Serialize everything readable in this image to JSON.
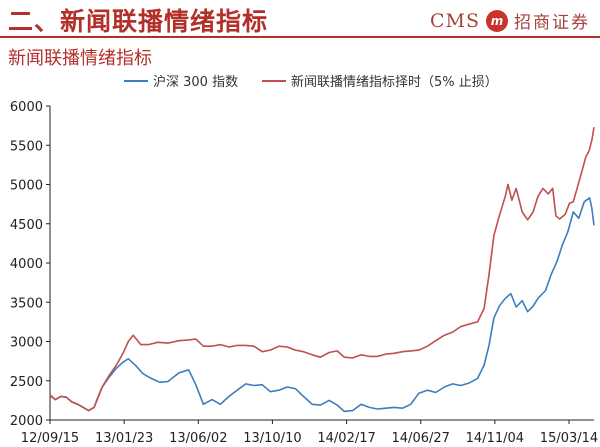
{
  "header": {
    "title": "二、新闻联播情绪指标",
    "brand_en": "CMS",
    "brand_mark": "m",
    "brand_cn": "招商证券"
  },
  "colors": {
    "accent": "#b3302a",
    "series_hs300": "#3d7dbf",
    "series_strategy": "#c0504d"
  },
  "chart_data": {
    "type": "line",
    "title": "新闻联播情绪指标",
    "xlabel": "",
    "ylabel": "",
    "ylim": [
      2000,
      6000
    ],
    "yticks": [
      2000,
      2500,
      3000,
      3500,
      4000,
      4500,
      5000,
      5500,
      6000
    ],
    "xticks": [
      "12/09/15",
      "13/01/23",
      "13/06/02",
      "13/10/10",
      "14/02/17",
      "14/06/27",
      "14/11/04",
      "15/03/14"
    ],
    "xrange": [
      "2012-09-15",
      "2015-06-12"
    ],
    "grid": false,
    "legend": "top",
    "series": [
      {
        "name": "沪深 300 指数",
        "color": "#3d7dbf",
        "points": [
          [
            "2012-09-15",
            2310
          ],
          [
            "2012-09-25",
            2260
          ],
          [
            "2012-10-05",
            2300
          ],
          [
            "2012-10-15",
            2290
          ],
          [
            "2012-10-25",
            2230
          ],
          [
            "2012-11-05",
            2200
          ],
          [
            "2012-11-15",
            2160
          ],
          [
            "2012-11-25",
            2120
          ],
          [
            "2012-12-05",
            2160
          ],
          [
            "2012-12-12",
            2290
          ],
          [
            "2012-12-20",
            2420
          ],
          [
            "2013-01-01",
            2540
          ],
          [
            "2013-01-15",
            2660
          ],
          [
            "2013-01-28",
            2740
          ],
          [
            "2013-02-06",
            2780
          ],
          [
            "2013-02-20",
            2690
          ],
          [
            "2013-03-05",
            2590
          ],
          [
            "2013-03-20",
            2530
          ],
          [
            "2013-04-05",
            2480
          ],
          [
            "2013-04-20",
            2490
          ],
          [
            "2013-05-10",
            2600
          ],
          [
            "2013-05-28",
            2640
          ],
          [
            "2013-06-10",
            2450
          ],
          [
            "2013-06-24",
            2200
          ],
          [
            "2013-07-10",
            2260
          ],
          [
            "2013-07-25",
            2200
          ],
          [
            "2013-08-10",
            2300
          ],
          [
            "2013-08-25",
            2380
          ],
          [
            "2013-09-10",
            2460
          ],
          [
            "2013-09-25",
            2440
          ],
          [
            "2013-10-10",
            2450
          ],
          [
            "2013-10-25",
            2360
          ],
          [
            "2013-11-10",
            2380
          ],
          [
            "2013-11-25",
            2420
          ],
          [
            "2013-12-10",
            2400
          ],
          [
            "2013-12-25",
            2300
          ],
          [
            "2014-01-10",
            2200
          ],
          [
            "2014-01-25",
            2190
          ],
          [
            "2014-02-10",
            2250
          ],
          [
            "2014-02-25",
            2190
          ],
          [
            "2014-03-10",
            2110
          ],
          [
            "2014-03-25",
            2120
          ],
          [
            "2014-04-10",
            2200
          ],
          [
            "2014-04-25",
            2160
          ],
          [
            "2014-05-10",
            2140
          ],
          [
            "2014-05-25",
            2150
          ],
          [
            "2014-06-10",
            2160
          ],
          [
            "2014-06-25",
            2150
          ],
          [
            "2014-07-10",
            2200
          ],
          [
            "2014-07-25",
            2340
          ],
          [
            "2014-08-10",
            2380
          ],
          [
            "2014-08-25",
            2350
          ],
          [
            "2014-09-10",
            2420
          ],
          [
            "2014-09-25",
            2460
          ],
          [
            "2014-10-10",
            2440
          ],
          [
            "2014-10-25",
            2470
          ],
          [
            "2014-11-10",
            2530
          ],
          [
            "2014-11-22",
            2700
          ],
          [
            "2014-12-01",
            2950
          ],
          [
            "2014-12-10",
            3300
          ],
          [
            "2014-12-20",
            3450
          ],
          [
            "2014-12-31",
            3550
          ],
          [
            "2015-01-10",
            3610
          ],
          [
            "2015-01-20",
            3440
          ],
          [
            "2015-01-31",
            3520
          ],
          [
            "2015-02-10",
            3380
          ],
          [
            "2015-02-20",
            3450
          ],
          [
            "2015-03-01",
            3550
          ],
          [
            "2015-03-15",
            3650
          ],
          [
            "2015-03-25",
            3850
          ],
          [
            "2015-04-05",
            4020
          ],
          [
            "2015-04-15",
            4230
          ],
          [
            "2015-04-25",
            4400
          ],
          [
            "2015-05-05",
            4650
          ],
          [
            "2015-05-15",
            4570
          ],
          [
            "2015-05-25",
            4780
          ],
          [
            "2015-06-04",
            4830
          ],
          [
            "2015-06-08",
            4700
          ],
          [
            "2015-06-12",
            4480
          ]
        ]
      },
      {
        "name": "新闻联播情绪指标择时（5% 止损）",
        "color": "#c0504d",
        "points": [
          [
            "2012-09-15",
            2320
          ],
          [
            "2012-09-25",
            2260
          ],
          [
            "2012-10-05",
            2300
          ],
          [
            "2012-10-15",
            2290
          ],
          [
            "2012-10-25",
            2230
          ],
          [
            "2012-11-05",
            2200
          ],
          [
            "2012-11-15",
            2160
          ],
          [
            "2012-11-25",
            2120
          ],
          [
            "2012-12-05",
            2160
          ],
          [
            "2012-12-12",
            2280
          ],
          [
            "2012-12-20",
            2420
          ],
          [
            "2013-01-01",
            2560
          ],
          [
            "2013-01-15",
            2700
          ],
          [
            "2013-01-28",
            2860
          ],
          [
            "2013-02-06",
            3000
          ],
          [
            "2013-02-15",
            3080
          ],
          [
            "2013-03-01",
            2960
          ],
          [
            "2013-03-15",
            2960
          ],
          [
            "2013-04-01",
            2990
          ],
          [
            "2013-04-20",
            2980
          ],
          [
            "2013-05-10",
            3010
          ],
          [
            "2013-05-28",
            3020
          ],
          [
            "2013-06-10",
            3030
          ],
          [
            "2013-06-24",
            2940
          ],
          [
            "2013-07-10",
            2940
          ],
          [
            "2013-07-25",
            2960
          ],
          [
            "2013-08-10",
            2930
          ],
          [
            "2013-08-25",
            2950
          ],
          [
            "2013-09-10",
            2950
          ],
          [
            "2013-09-25",
            2940
          ],
          [
            "2013-10-10",
            2870
          ],
          [
            "2013-10-25",
            2890
          ],
          [
            "2013-11-10",
            2940
          ],
          [
            "2013-11-25",
            2930
          ],
          [
            "2013-12-10",
            2890
          ],
          [
            "2013-12-25",
            2870
          ],
          [
            "2014-01-10",
            2830
          ],
          [
            "2014-01-25",
            2800
          ],
          [
            "2014-02-10",
            2860
          ],
          [
            "2014-02-25",
            2880
          ],
          [
            "2014-03-10",
            2800
          ],
          [
            "2014-03-25",
            2790
          ],
          [
            "2014-04-10",
            2830
          ],
          [
            "2014-04-25",
            2810
          ],
          [
            "2014-05-10",
            2810
          ],
          [
            "2014-05-25",
            2840
          ],
          [
            "2014-06-10",
            2850
          ],
          [
            "2014-06-25",
            2870
          ],
          [
            "2014-07-10",
            2880
          ],
          [
            "2014-07-25",
            2890
          ],
          [
            "2014-08-10",
            2940
          ],
          [
            "2014-08-25",
            3010
          ],
          [
            "2014-09-10",
            3080
          ],
          [
            "2014-09-25",
            3120
          ],
          [
            "2014-10-10",
            3190
          ],
          [
            "2014-10-25",
            3220
          ],
          [
            "2014-11-10",
            3250
          ],
          [
            "2014-11-22",
            3420
          ],
          [
            "2014-12-01",
            3850
          ],
          [
            "2014-12-10",
            4350
          ],
          [
            "2014-12-20",
            4600
          ],
          [
            "2014-12-31",
            4850
          ],
          [
            "2015-01-05",
            5000
          ],
          [
            "2015-01-12",
            4800
          ],
          [
            "2015-01-20",
            4950
          ],
          [
            "2015-01-31",
            4650
          ],
          [
            "2015-02-10",
            4550
          ],
          [
            "2015-02-20",
            4650
          ],
          [
            "2015-03-01",
            4850
          ],
          [
            "2015-03-10",
            4950
          ],
          [
            "2015-03-20",
            4880
          ],
          [
            "2015-03-28",
            4950
          ],
          [
            "2015-04-03",
            4600
          ],
          [
            "2015-04-10",
            4560
          ],
          [
            "2015-04-20",
            4620
          ],
          [
            "2015-04-28",
            4760
          ],
          [
            "2015-05-05",
            4780
          ],
          [
            "2015-05-12",
            4950
          ],
          [
            "2015-05-20",
            5150
          ],
          [
            "2015-05-28",
            5350
          ],
          [
            "2015-06-03",
            5430
          ],
          [
            "2015-06-08",
            5560
          ],
          [
            "2015-06-12",
            5730
          ]
        ]
      }
    ]
  }
}
